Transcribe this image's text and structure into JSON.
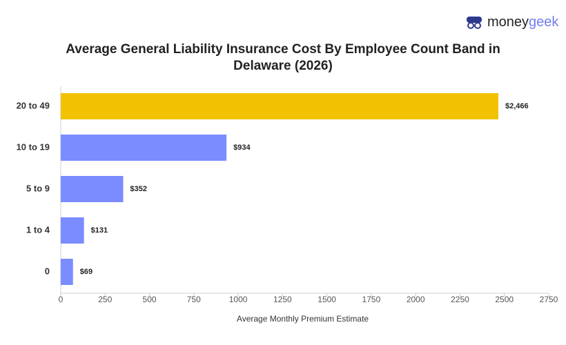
{
  "logo": [
    "money",
    "geek"
  ],
  "chart_data": {
    "type": "hbar",
    "title": "Average General Liability Insurance Cost By Employee Count Band in Delaware (2026)",
    "x_label": "Average Monthly Premium Estimate",
    "categories": [
      "20 to 49",
      "10 to 19",
      "5 to 9",
      "1 to 4",
      "0"
    ],
    "values": [
      2466,
      934,
      352,
      131,
      69
    ],
    "value_labels": [
      "$2,466",
      "$934",
      "$352",
      "$131",
      "$69"
    ],
    "colors": [
      "#f2c200",
      "#7b8cff",
      "#7b8cff",
      "#7b8cff",
      "#7b8cff"
    ],
    "xlim": [
      0,
      2750
    ],
    "xticks": [
      0,
      250,
      500,
      750,
      1000,
      1250,
      1500,
      1750,
      2000,
      2250,
      2500,
      2750
    ]
  }
}
